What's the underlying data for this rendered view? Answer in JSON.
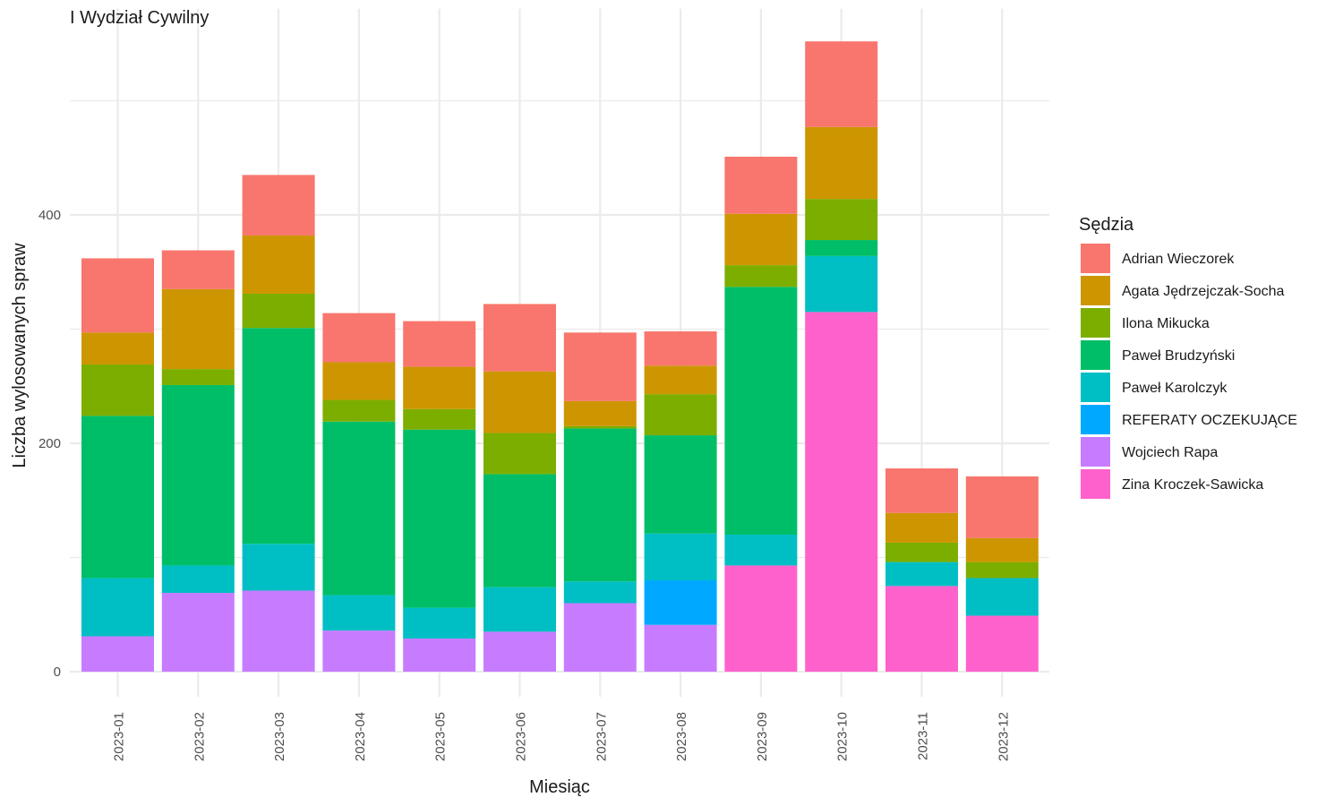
{
  "chart_data": {
    "type": "bar",
    "stacked": true,
    "title": "I Wydział Cywilny",
    "xlabel": "Miesiąc",
    "ylabel": "Liczba wylosowanych spraw",
    "ylim": [
      0,
      565
    ],
    "yticks": [
      0,
      200,
      400
    ],
    "grid": true,
    "legend_title": "Sędzia",
    "legend_position": "right",
    "categories": [
      "2023-01",
      "2023-02",
      "2023-03",
      "2023-04",
      "2023-05",
      "2023-06",
      "2023-07",
      "2023-08",
      "2023-09",
      "2023-10",
      "2023-11",
      "2023-12"
    ],
    "series": [
      {
        "name": "Zina Kroczek-Sawicka",
        "color": "#FF61CC",
        "values": [
          0,
          0,
          0,
          0,
          0,
          0,
          0,
          0,
          93,
          315,
          75,
          49
        ]
      },
      {
        "name": "Wojciech Rapa",
        "color": "#C77CFF",
        "values": [
          31,
          69,
          71,
          36,
          29,
          35,
          60,
          41,
          0,
          0,
          0,
          0
        ]
      },
      {
        "name": "REFERATY OCZEKUJĄCE",
        "color": "#00A9FF",
        "values": [
          0,
          0,
          0,
          0,
          0,
          0,
          0,
          39,
          0,
          0,
          0,
          0
        ]
      },
      {
        "name": "Paweł Karolczyk",
        "color": "#00BFC4",
        "values": [
          51,
          24,
          41,
          31,
          27,
          39,
          19,
          41,
          27,
          49,
          21,
          33
        ]
      },
      {
        "name": "Paweł Brudzyński",
        "color": "#00BE67",
        "values": [
          142,
          158,
          189,
          152,
          156,
          99,
          134,
          86,
          217,
          14,
          0,
          0
        ]
      },
      {
        "name": "Ilona Mikucka",
        "color": "#7CAE00",
        "values": [
          45,
          14,
          30,
          19,
          18,
          36,
          2,
          36,
          19,
          36,
          17,
          14
        ]
      },
      {
        "name": "Agata Jędrzejczak-Socha",
        "color": "#CD9600",
        "values": [
          28,
          70,
          51,
          33,
          37,
          54,
          22,
          25,
          45,
          63,
          26,
          21
        ]
      },
      {
        "name": "Adrian Wieczorek",
        "color": "#F8766D",
        "values": [
          65,
          34,
          53,
          43,
          40,
          59,
          60,
          30,
          50,
          75,
          39,
          54
        ]
      }
    ],
    "legend_order": [
      "Adrian Wieczorek",
      "Agata Jędrzejczak-Socha",
      "Ilona Mikucka",
      "Paweł Brudzyński",
      "Paweł Karolczyk",
      "REFERATY OCZEKUJĄCE",
      "Wojciech Rapa",
      "Zina Kroczek-Sawicka"
    ]
  }
}
